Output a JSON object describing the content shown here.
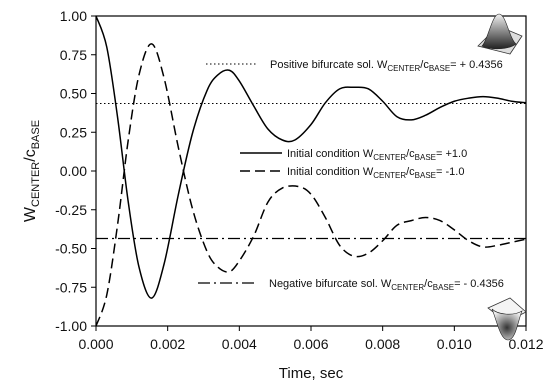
{
  "chart_data": {
    "type": "line",
    "xlabel": "Time, sec",
    "ylabel": {
      "main": "W",
      "sub1": "CENTER",
      "mid": "/c",
      "sub2": "BASE"
    },
    "xlim": [
      0,
      0.012
    ],
    "ylim": [
      -1.0,
      1.0
    ],
    "x_ticks": [
      "0.000",
      "0.002",
      "0.004",
      "0.006",
      "0.008",
      "0.010",
      "0.012"
    ],
    "x_tick_values": [
      0,
      0.002,
      0.004,
      0.006,
      0.008,
      0.01,
      0.012
    ],
    "y_ticks": [
      "1.00",
      "0.75",
      "0.50",
      "0.25",
      "0.00",
      "-0.25",
      "-0.50",
      "-0.75",
      "-1.00"
    ],
    "y_tick_values": [
      1.0,
      0.75,
      0.5,
      0.25,
      0.0,
      -0.25,
      -0.5,
      -0.75,
      -1.0
    ],
    "grid": false,
    "legend_position": "center-right",
    "series": [
      {
        "name": "Initial condition W_CENTER/c_BASE = +1.0",
        "style": "solid",
        "x": [
          0,
          0.0003,
          0.0006,
          0.0009,
          0.0012,
          0.00155,
          0.0019,
          0.0023,
          0.0027,
          0.0031,
          0.0034,
          0.00372,
          0.004,
          0.0044,
          0.0048,
          0.0052,
          0.00555,
          0.006,
          0.0064,
          0.0068,
          0.0072,
          0.0076,
          0.008,
          0.0084,
          0.0088,
          0.0092,
          0.0096,
          0.01,
          0.0104,
          0.0108,
          0.0112,
          0.0116,
          0.012
        ],
        "y": [
          1.0,
          0.8,
          0.35,
          -0.2,
          -0.62,
          -0.82,
          -0.6,
          -0.15,
          0.25,
          0.52,
          0.62,
          0.65,
          0.58,
          0.42,
          0.27,
          0.2,
          0.2,
          0.3,
          0.44,
          0.53,
          0.54,
          0.53,
          0.45,
          0.35,
          0.33,
          0.36,
          0.41,
          0.45,
          0.47,
          0.48,
          0.47,
          0.45,
          0.44
        ]
      },
      {
        "name": "Initial condition W_CENTER/c_BASE = -1.0",
        "style": "dashed",
        "x": [
          0,
          0.0003,
          0.0006,
          0.0009,
          0.0012,
          0.00155,
          0.0019,
          0.0023,
          0.0027,
          0.0031,
          0.0034,
          0.00372,
          0.004,
          0.0044,
          0.0048,
          0.0052,
          0.00565,
          0.006,
          0.0064,
          0.0068,
          0.0072,
          0.0076,
          0.008,
          0.0084,
          0.0088,
          0.0092,
          0.0096,
          0.01,
          0.0104,
          0.0108,
          0.0112,
          0.0116,
          0.012
        ],
        "y": [
          -1.0,
          -0.8,
          -0.35,
          0.2,
          0.62,
          0.82,
          0.6,
          0.15,
          -0.25,
          -0.52,
          -0.62,
          -0.65,
          -0.58,
          -0.42,
          -0.2,
          -0.11,
          -0.1,
          -0.15,
          -0.3,
          -0.48,
          -0.55,
          -0.53,
          -0.45,
          -0.35,
          -0.32,
          -0.3,
          -0.32,
          -0.38,
          -0.45,
          -0.49,
          -0.48,
          -0.46,
          -0.44
        ]
      },
      {
        "name": "Positive bifurcate sol. W_CENTER/c_BASE = + 0.4356",
        "style": "dotted",
        "x": [
          0,
          0.012
        ],
        "y": [
          0.4356,
          0.4356
        ]
      },
      {
        "name": "Negative bifurcate sol. W_CENTER/c_BASE = - 0.4356",
        "style": "dashdot",
        "x": [
          0,
          0.012
        ],
        "y": [
          -0.4356,
          -0.4356
        ]
      }
    ],
    "annotations": {
      "positive": {
        "pre": "Positive bifurcate sol. W",
        "sub1": "CENTER",
        "mid": "/c",
        "sub2": "BASE",
        "post": "= + 0.4356"
      },
      "negative": {
        "pre": "Negative bifurcate sol. W",
        "sub1": "CENTER",
        "mid": "/c",
        "sub2": "BASE",
        "post": "= - 0.4356"
      },
      "legend_plus": {
        "pre": "Initial condition W",
        "sub1": "CENTER",
        "mid": "/c",
        "sub2": "BASE",
        "post": "= +1.0"
      },
      "legend_minus": {
        "pre": "Initial condition W",
        "sub1": "CENTER",
        "mid": "/c",
        "sub2": "BASE",
        "post": "= -1.0"
      }
    }
  }
}
